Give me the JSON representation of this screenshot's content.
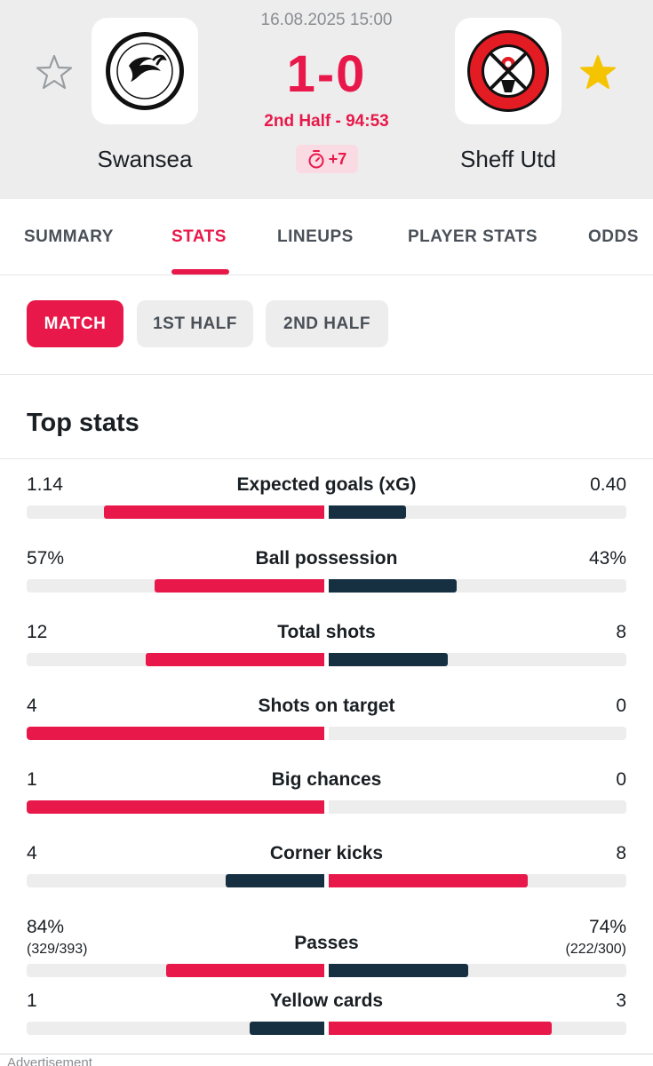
{
  "match": {
    "datetime": "16.08.2025 15:00",
    "score": "1-0",
    "status": "2nd Half - 94:53",
    "added_time": "+7",
    "home": {
      "name": "Swansea",
      "crest_text": "SWANSEA CITY AFC",
      "favorite": false
    },
    "away": {
      "name": "Sheff Utd",
      "crest_text": "SHEFFIELD UNITED F.C.",
      "crest_year": "1889",
      "favorite": true
    }
  },
  "tabs": [
    {
      "label": "SUMMARY",
      "active": false
    },
    {
      "label": "STATS",
      "active": true
    },
    {
      "label": "LINEUPS",
      "active": false
    },
    {
      "label": "PLAYER STATS",
      "active": false
    },
    {
      "label": "ODDS",
      "active": false
    }
  ],
  "periods": [
    {
      "label": "MATCH",
      "active": true
    },
    {
      "label": "1ST HALF",
      "active": false
    },
    {
      "label": "2ND HALF",
      "active": false
    }
  ],
  "top_stats": {
    "title": "Top stats",
    "rows": [
      {
        "label": "Expected goals (xG)",
        "home": "1.14",
        "away": "0.40",
        "home_share": 0.74,
        "away_share": 0.26,
        "leader": "home"
      },
      {
        "label": "Ball possession",
        "home": "57%",
        "away": "43%",
        "home_share": 0.57,
        "away_share": 0.43,
        "leader": "home"
      },
      {
        "label": "Total shots",
        "home": "12",
        "away": "8",
        "home_share": 0.6,
        "away_share": 0.4,
        "leader": "home"
      },
      {
        "label": "Shots on target",
        "home": "4",
        "away": "0",
        "home_share": 1.0,
        "away_share": 0.0,
        "leader": "home"
      },
      {
        "label": "Big chances",
        "home": "1",
        "away": "0",
        "home_share": 1.0,
        "away_share": 0.0,
        "leader": "home"
      },
      {
        "label": "Corner kicks",
        "home": "4",
        "away": "8",
        "home_share": 0.33,
        "away_share": 0.67,
        "leader": "away"
      },
      {
        "label": "Passes",
        "home": "84%",
        "home_sub": "(329/393)",
        "away": "74%",
        "away_sub": "(222/300)",
        "home_share": 0.53,
        "away_share": 0.47,
        "leader": "home"
      },
      {
        "label": "Yellow cards",
        "home": "1",
        "away": "3",
        "home_share": 0.25,
        "away_share": 0.75,
        "leader": "away"
      }
    ]
  },
  "advertisement_label": "Advertisement",
  "colors": {
    "accent": "#e8194a",
    "dark_bar": "#173041",
    "track": "#ededee",
    "favorite_star": "#f5c400"
  }
}
